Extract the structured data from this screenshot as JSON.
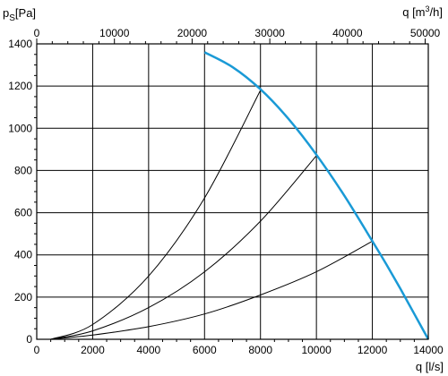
{
  "chart_data": {
    "type": "line",
    "x_bottom": {
      "label_main": "q",
      "label_unit": "[l/s]",
      "range": [
        0,
        14000
      ],
      "ticks": [
        "0",
        "2000",
        "4000",
        "6000",
        "8000",
        "10000",
        "12000",
        "14000"
      ]
    },
    "x_top": {
      "label_main": "q",
      "label_unit_prefix": "[m",
      "label_unit_sup": "3",
      "label_unit_suffix": "/h]",
      "range": [
        0,
        50400
      ],
      "ticks": [
        "0",
        "10000",
        "20000",
        "30000",
        "40000",
        "50000"
      ]
    },
    "y": {
      "label_main": "p",
      "label_sub": "S",
      "label_unit": "[Pa]",
      "range": [
        0,
        1400
      ],
      "ticks": [
        "0",
        "200",
        "400",
        "600",
        "800",
        "1000",
        "1200",
        "1400"
      ]
    },
    "grid": true,
    "fan_curve": {
      "color": "#1a9ad6",
      "x": [
        6000,
        7000,
        8000,
        9000,
        10000,
        11000,
        12000,
        12500,
        13000,
        13500,
        14000
      ],
      "y": [
        1360,
        1290,
        1185,
        1045,
        875,
        680,
        465,
        355,
        240,
        120,
        0
      ]
    },
    "system_curves": [
      {
        "x": [
          500,
          2000,
          4000,
          6000,
          8000
        ],
        "y": [
          0,
          70,
          300,
          670,
          1180
        ]
      },
      {
        "x": [
          500,
          2000,
          4000,
          6000,
          8000,
          10000
        ],
        "y": [
          0,
          40,
          150,
          320,
          560,
          870
        ]
      },
      {
        "x": [
          500,
          2000,
          4000,
          6000,
          8000,
          10000,
          12000
        ],
        "y": [
          0,
          20,
          60,
          120,
          210,
          320,
          465
        ]
      }
    ]
  }
}
